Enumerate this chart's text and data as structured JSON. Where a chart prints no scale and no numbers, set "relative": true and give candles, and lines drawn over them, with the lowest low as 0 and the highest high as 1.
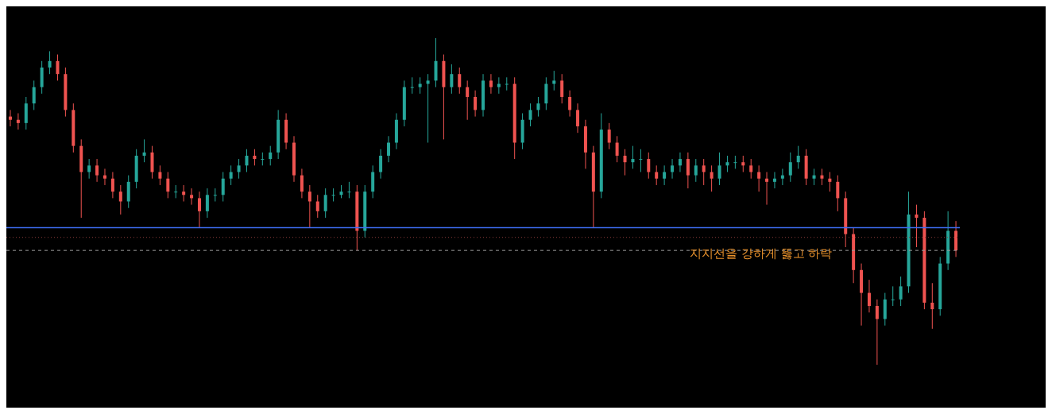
{
  "chart_data": {
    "type": "candlestick",
    "relative": true,
    "categories": [
      null,
      null,
      null,
      null,
      null,
      null,
      null,
      null,
      null,
      null,
      null,
      null,
      null,
      null,
      null,
      null,
      null,
      null,
      null,
      null,
      null,
      null,
      null,
      null,
      null,
      null,
      null,
      null,
      null,
      null,
      null,
      null,
      null,
      null,
      null,
      null,
      null,
      null,
      null,
      null,
      null,
      null,
      null,
      null,
      null,
      null,
      null,
      null,
      null,
      null,
      null,
      null,
      null,
      null,
      null,
      null,
      null,
      null,
      null,
      null,
      null,
      null,
      null,
      null,
      null,
      null,
      null,
      null,
      null,
      null,
      null,
      null,
      null,
      null,
      null,
      null,
      null,
      null,
      null,
      null,
      null,
      null,
      null,
      null,
      null,
      null,
      null,
      null,
      null,
      null,
      null,
      null,
      null,
      null,
      null,
      null,
      null,
      null,
      null,
      null,
      null,
      null,
      null,
      null,
      null,
      null,
      null,
      null,
      null,
      null,
      null,
      null,
      null,
      null,
      null,
      null,
      null,
      null,
      null,
      null,
      null
    ],
    "ohlc": [
      [
        0.76,
        0.78,
        0.73,
        0.75
      ],
      [
        0.75,
        0.77,
        0.72,
        0.74
      ],
      [
        0.74,
        0.82,
        0.72,
        0.8
      ],
      [
        0.8,
        0.87,
        0.78,
        0.85
      ],
      [
        0.85,
        0.93,
        0.83,
        0.91
      ],
      [
        0.91,
        0.96,
        0.89,
        0.93
      ],
      [
        0.93,
        0.95,
        0.87,
        0.89
      ],
      [
        0.89,
        0.91,
        0.76,
        0.78
      ],
      [
        0.78,
        0.8,
        0.65,
        0.67
      ],
      [
        0.67,
        0.69,
        0.45,
        0.59
      ],
      [
        0.59,
        0.63,
        0.57,
        0.61
      ],
      [
        0.61,
        0.63,
        0.56,
        0.58
      ],
      [
        0.58,
        0.6,
        0.55,
        0.57
      ],
      [
        0.57,
        0.59,
        0.51,
        0.53
      ],
      [
        0.53,
        0.55,
        0.46,
        0.5
      ],
      [
        0.5,
        0.58,
        0.48,
        0.56
      ],
      [
        0.56,
        0.66,
        0.54,
        0.64
      ],
      [
        0.64,
        0.69,
        0.62,
        0.65
      ],
      [
        0.65,
        0.67,
        0.57,
        0.59
      ],
      [
        0.59,
        0.61,
        0.55,
        0.57
      ],
      [
        0.57,
        0.59,
        0.51,
        0.53
      ],
      [
        0.53,
        0.55,
        0.51,
        0.53
      ],
      [
        0.53,
        0.55,
        0.5,
        0.52
      ],
      [
        0.52,
        0.54,
        0.49,
        0.51
      ],
      [
        0.51,
        0.53,
        0.42,
        0.47
      ],
      [
        0.47,
        0.54,
        0.45,
        0.52
      ],
      [
        0.52,
        0.54,
        0.5,
        0.52
      ],
      [
        0.52,
        0.59,
        0.5,
        0.57
      ],
      [
        0.57,
        0.61,
        0.55,
        0.59
      ],
      [
        0.59,
        0.63,
        0.57,
        0.61
      ],
      [
        0.61,
        0.66,
        0.59,
        0.64
      ],
      [
        0.64,
        0.66,
        0.61,
        0.63
      ],
      [
        0.63,
        0.65,
        0.61,
        0.63
      ],
      [
        0.63,
        0.67,
        0.61,
        0.65
      ],
      [
        0.65,
        0.78,
        0.63,
        0.75
      ],
      [
        0.75,
        0.77,
        0.66,
        0.68
      ],
      [
        0.68,
        0.7,
        0.56,
        0.58
      ],
      [
        0.58,
        0.6,
        0.51,
        0.53
      ],
      [
        0.53,
        0.55,
        0.42,
        0.5
      ],
      [
        0.5,
        0.52,
        0.45,
        0.47
      ],
      [
        0.47,
        0.54,
        0.45,
        0.52
      ],
      [
        0.52,
        0.54,
        0.5,
        0.52
      ],
      [
        0.52,
        0.55,
        0.51,
        0.53
      ],
      [
        0.53,
        0.56,
        0.51,
        0.53
      ],
      [
        0.53,
        0.55,
        0.35,
        0.41
      ],
      [
        0.41,
        0.55,
        0.39,
        0.53
      ],
      [
        0.53,
        0.61,
        0.51,
        0.59
      ],
      [
        0.59,
        0.66,
        0.57,
        0.64
      ],
      [
        0.64,
        0.7,
        0.62,
        0.68
      ],
      [
        0.68,
        0.77,
        0.66,
        0.75
      ],
      [
        0.75,
        0.87,
        0.73,
        0.85
      ],
      [
        0.85,
        0.88,
        0.83,
        0.85
      ],
      [
        0.85,
        0.88,
        0.83,
        0.86
      ],
      [
        0.86,
        0.89,
        0.68,
        0.87
      ],
      [
        0.87,
        1.0,
        0.85,
        0.93
      ],
      [
        0.93,
        0.95,
        0.69,
        0.85
      ],
      [
        0.85,
        0.92,
        0.83,
        0.89
      ],
      [
        0.89,
        0.91,
        0.83,
        0.85
      ],
      [
        0.85,
        0.87,
        0.75,
        0.82
      ],
      [
        0.82,
        0.84,
        0.76,
        0.78
      ],
      [
        0.78,
        0.89,
        0.76,
        0.87
      ],
      [
        0.87,
        0.89,
        0.83,
        0.85
      ],
      [
        0.85,
        0.88,
        0.83,
        0.86
      ],
      [
        0.86,
        0.88,
        0.84,
        0.86
      ],
      [
        0.86,
        0.88,
        0.63,
        0.68
      ],
      [
        0.68,
        0.77,
        0.66,
        0.75
      ],
      [
        0.75,
        0.8,
        0.73,
        0.78
      ],
      [
        0.78,
        0.82,
        0.76,
        0.8
      ],
      [
        0.8,
        0.88,
        0.78,
        0.86
      ],
      [
        0.86,
        0.9,
        0.84,
        0.87
      ],
      [
        0.87,
        0.89,
        0.8,
        0.82
      ],
      [
        0.82,
        0.84,
        0.76,
        0.78
      ],
      [
        0.78,
        0.8,
        0.71,
        0.73
      ],
      [
        0.73,
        0.75,
        0.6,
        0.65
      ],
      [
        0.65,
        0.67,
        0.42,
        0.53
      ],
      [
        0.53,
        0.77,
        0.51,
        0.72
      ],
      [
        0.72,
        0.74,
        0.66,
        0.68
      ],
      [
        0.68,
        0.7,
        0.62,
        0.64
      ],
      [
        0.64,
        0.66,
        0.58,
        0.62
      ],
      [
        0.62,
        0.67,
        0.6,
        0.63
      ],
      [
        0.63,
        0.66,
        0.59,
        0.63
      ],
      [
        0.63,
        0.65,
        0.57,
        0.59
      ],
      [
        0.59,
        0.61,
        0.55,
        0.57
      ],
      [
        0.57,
        0.61,
        0.55,
        0.59
      ],
      [
        0.59,
        0.63,
        0.57,
        0.61
      ],
      [
        0.61,
        0.65,
        0.59,
        0.63
      ],
      [
        0.63,
        0.65,
        0.54,
        0.58
      ],
      [
        0.58,
        0.63,
        0.56,
        0.61
      ],
      [
        0.61,
        0.63,
        0.55,
        0.59
      ],
      [
        0.59,
        0.61,
        0.53,
        0.57
      ],
      [
        0.57,
        0.65,
        0.55,
        0.61
      ],
      [
        0.61,
        0.64,
        0.59,
        0.62
      ],
      [
        0.62,
        0.64,
        0.6,
        0.62
      ],
      [
        0.62,
        0.64,
        0.59,
        0.61
      ],
      [
        0.61,
        0.63,
        0.57,
        0.59
      ],
      [
        0.59,
        0.61,
        0.53,
        0.57
      ],
      [
        0.57,
        0.59,
        0.49,
        0.56
      ],
      [
        0.56,
        0.59,
        0.54,
        0.57
      ],
      [
        0.57,
        0.6,
        0.55,
        0.58
      ],
      [
        0.58,
        0.65,
        0.56,
        0.62
      ],
      [
        0.62,
        0.67,
        0.6,
        0.64
      ],
      [
        0.64,
        0.66,
        0.55,
        0.57
      ],
      [
        0.57,
        0.6,
        0.55,
        0.58
      ],
      [
        0.58,
        0.6,
        0.55,
        0.57
      ],
      [
        0.57,
        0.59,
        0.53,
        0.56
      ],
      [
        0.56,
        0.58,
        0.47,
        0.51
      ],
      [
        0.51,
        0.53,
        0.36,
        0.4
      ],
      [
        0.4,
        0.42,
        0.25,
        0.29
      ],
      [
        0.29,
        0.31,
        0.12,
        0.22
      ],
      [
        0.22,
        0.26,
        0.16,
        0.18
      ],
      [
        0.18,
        0.2,
        0.0,
        0.14
      ],
      [
        0.14,
        0.22,
        0.12,
        0.2
      ],
      [
        0.2,
        0.24,
        0.18,
        0.2
      ],
      [
        0.2,
        0.27,
        0.18,
        0.24
      ],
      [
        0.24,
        0.53,
        0.22,
        0.46
      ],
      [
        0.46,
        0.49,
        0.36,
        0.45
      ],
      [
        0.45,
        0.47,
        0.17,
        0.19
      ],
      [
        0.19,
        0.25,
        0.11,
        0.17
      ],
      [
        0.17,
        0.33,
        0.15,
        0.31
      ],
      [
        0.31,
        0.47,
        0.29,
        0.41
      ],
      [
        0.41,
        0.44,
        0.33,
        0.35
      ]
    ],
    "colors": [
      "#ef5350",
      "#ef5350",
      "#26a69a",
      "#26a69a",
      "#26a69a",
      "#26a69a",
      "#ef5350",
      "#ef5350",
      "#ef5350",
      "#ef5350",
      "#26a69a",
      "#ef5350",
      "#ef5350",
      "#ef5350",
      "#ef5350",
      "#26a69a",
      "#26a69a",
      "#26a69a",
      "#ef5350",
      "#ef5350",
      "#ef5350",
      "#26a69a",
      "#ef5350",
      "#ef5350",
      "#ef5350",
      "#26a69a",
      "#26a69a",
      "#26a69a",
      "#26a69a",
      "#26a69a",
      "#26a69a",
      "#ef5350",
      "#26a69a",
      "#26a69a",
      "#26a69a",
      "#ef5350",
      "#ef5350",
      "#ef5350",
      "#ef5350",
      "#ef5350",
      "#26a69a",
      "#26a69a",
      "#26a69a",
      "#26a69a",
      "#ef5350",
      "#26a69a",
      "#26a69a",
      "#26a69a",
      "#26a69a",
      "#26a69a",
      "#26a69a",
      "#26a69a",
      "#26a69a",
      "#26a69a",
      "#26a69a",
      "#ef5350",
      "#26a69a",
      "#ef5350",
      "#ef5350",
      "#ef5350",
      "#26a69a",
      "#ef5350",
      "#26a69a",
      "#26a69a",
      "#ef5350",
      "#26a69a",
      "#26a69a",
      "#26a69a",
      "#26a69a",
      "#26a69a",
      "#ef5350",
      "#ef5350",
      "#ef5350",
      "#ef5350",
      "#ef5350",
      "#26a69a",
      "#ef5350",
      "#ef5350",
      "#ef5350",
      "#26a69a",
      "#26a69a",
      "#ef5350",
      "#ef5350",
      "#26a69a",
      "#26a69a",
      "#26a69a",
      "#ef5350",
      "#26a69a",
      "#ef5350",
      "#ef5350",
      "#26a69a",
      "#26a69a",
      "#26a69a",
      "#ef5350",
      "#ef5350",
      "#ef5350",
      "#ef5350",
      "#26a69a",
      "#26a69a",
      "#26a69a",
      "#26a69a",
      "#ef5350",
      "#26a69a",
      "#ef5350",
      "#ef5350",
      "#ef5350",
      "#ef5350",
      "#ef5350",
      "#ef5350",
      "#ef5350",
      "#ef5350",
      "#26a69a",
      "#26a69a",
      "#26a69a",
      "#26a69a",
      "#ef5350",
      "#ef5350",
      "#ef5350",
      "#26a69a",
      "#26a69a",
      "#ef5350"
    ],
    "ref_lines": [
      {
        "axis": "y",
        "value": 0.42,
        "color": "#3d6cf0",
        "line_style": "solid"
      },
      {
        "axis": "y",
        "value": 0.39,
        "color": "#8b3a3a",
        "line_style": "dotted"
      },
      {
        "axis": "y",
        "value": 0.35,
        "color": "#9e9e9e",
        "line_style": "dashed"
      }
    ],
    "annotations": [
      "지지선을 강하게 뚫고 하락"
    ]
  }
}
